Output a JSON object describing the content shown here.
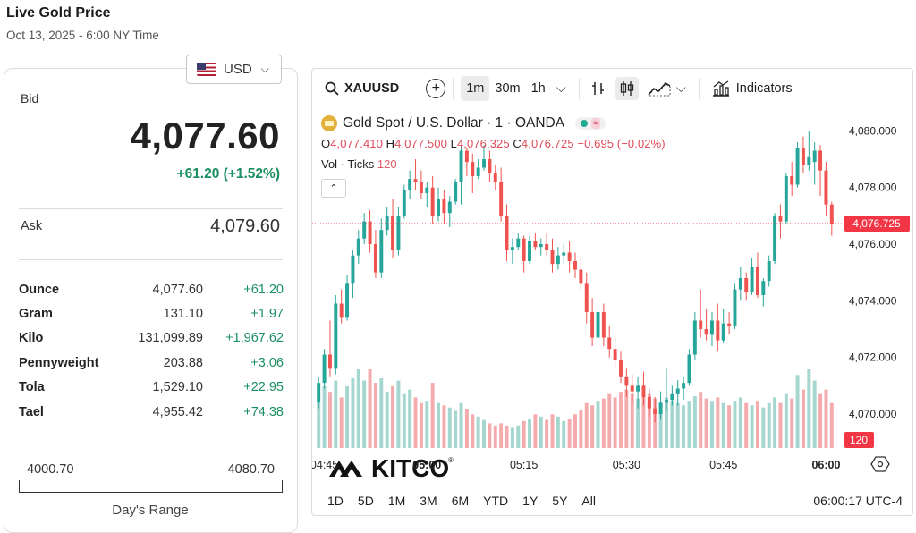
{
  "header": {
    "title": "Live Gold Price",
    "subtitle": "Oct 13, 2025 - 6:00 NY Time"
  },
  "currency": {
    "label": "USD",
    "flag": "us-flag-icon"
  },
  "quote": {
    "bid_label": "Bid",
    "bid": "4,077.60",
    "change": "+61.20 (+1.52%)",
    "ask_label": "Ask",
    "ask": "4,079.60"
  },
  "units": [
    {
      "unit": "Ounce",
      "price": "4,077.60",
      "change": "+61.20"
    },
    {
      "unit": "Gram",
      "price": "131.10",
      "change": "+1.97"
    },
    {
      "unit": "Kilo",
      "price": "131,099.89",
      "change": "+1,967.62"
    },
    {
      "unit": "Pennyweight",
      "price": "203.88",
      "change": "+3.06"
    },
    {
      "unit": "Tola",
      "price": "1,529.10",
      "change": "+22.95"
    },
    {
      "unit": "Tael",
      "price": "4,955.42",
      "change": "+74.38"
    }
  ],
  "range": {
    "low": "4000.70",
    "high": "4080.70",
    "label": "Day's Range"
  },
  "toolbar": {
    "symbol": "XAUUSD",
    "intervals": [
      "1m",
      "30m",
      "1h"
    ],
    "active_interval": "1m",
    "indicators": "Indicators"
  },
  "legend": {
    "title": "Gold Spot / U.S. Dollar · 1 · OANDA",
    "o_label": "O",
    "o": "4,077.410",
    "h_label": "H",
    "h": "4,077.500",
    "l_label": "L",
    "l": "4,076.325",
    "c_label": "C",
    "c": "4,076.725",
    "chg": "−0.695 (−0.02%)",
    "vol_label": "Vol · Ticks",
    "vol": "120"
  },
  "watermark": "KITCO",
  "ranges": [
    "1D",
    "5D",
    "1M",
    "3M",
    "6M",
    "YTD",
    "1Y",
    "5Y",
    "All"
  ],
  "clock": "06:00:17 UTC-4",
  "colors": {
    "up": "#26a69a",
    "down": "#ef5350",
    "vol_up": "#a5d6cf",
    "vol_down": "#f4abae",
    "last_price": "#f23645",
    "change_green": "#1a8f62"
  },
  "chart_data": {
    "type": "candlestick",
    "title": "Gold Spot / U.S. Dollar · 1 · OANDA",
    "y_ticks": [
      "4,080.000",
      "4,078.000",
      "4,076.000",
      "4,074.000",
      "4,072.000",
      "4,070.000"
    ],
    "x_ticks": [
      {
        "label": "04:45",
        "bold": false
      },
      {
        "label": "05:00",
        "bold": true
      },
      {
        "label": "05:15",
        "bold": false
      },
      {
        "label": "05:30",
        "bold": false
      },
      {
        "label": "05:45",
        "bold": false
      },
      {
        "label": "06:00",
        "bold": true
      }
    ],
    "ylim": [
      4068.8,
      4080.8
    ],
    "last_price": "4,076.725",
    "last_volume": "120",
    "grid": false,
    "candles": [
      [
        4070.4,
        4071.3,
        4070.2,
        4071.1,
        40
      ],
      [
        4071.1,
        4072.3,
        4070.9,
        4072.1,
        55
      ],
      [
        4072.1,
        4073.3,
        4071.3,
        4071.6,
        50
      ],
      [
        4071.6,
        4074.2,
        4071.4,
        4073.9,
        60
      ],
      [
        4073.9,
        4074.4,
        4073.2,
        4073.4,
        45
      ],
      [
        4073.4,
        4074.9,
        4073.3,
        4074.6,
        55
      ],
      [
        4074.6,
        4075.8,
        4074.1,
        4075.6,
        62
      ],
      [
        4075.6,
        4076.5,
        4075.3,
        4076.2,
        70
      ],
      [
        4076.2,
        4077.1,
        4076.0,
        4076.8,
        60
      ],
      [
        4076.8,
        4077.2,
        4075.7,
        4076.0,
        70
      ],
      [
        4076.0,
        4076.5,
        4074.8,
        4075.0,
        58
      ],
      [
        4075.0,
        4076.9,
        4074.8,
        4076.5,
        62
      ],
      [
        4076.5,
        4077.3,
        4076.3,
        4077.0,
        50
      ],
      [
        4077.0,
        4077.6,
        4075.5,
        4075.8,
        55
      ],
      [
        4075.8,
        4077.3,
        4075.6,
        4077.0,
        60
      ],
      [
        4077.0,
        4078.1,
        4076.9,
        4077.9,
        48
      ],
      [
        4077.9,
        4078.6,
        4077.6,
        4078.3,
        52
      ],
      [
        4078.3,
        4079.0,
        4077.9,
        4078.2,
        45
      ],
      [
        4078.2,
        4078.6,
        4077.6,
        4077.8,
        40
      ],
      [
        4077.8,
        4078.2,
        4077.3,
        4078.0,
        42
      ],
      [
        4078.0,
        4078.4,
        4076.7,
        4077.0,
        58
      ],
      [
        4077.0,
        4078.0,
        4076.8,
        4077.6,
        40
      ],
      [
        4077.6,
        4077.9,
        4076.7,
        4077.1,
        38
      ],
      [
        4077.1,
        4077.7,
        4076.6,
        4077.5,
        36
      ],
      [
        4077.5,
        4078.3,
        4077.4,
        4078.2,
        33
      ],
      [
        4078.2,
        4079.5,
        4077.4,
        4079.3,
        40
      ],
      [
        4079.3,
        4079.4,
        4078.4,
        4078.9,
        35
      ],
      [
        4078.9,
        4079.2,
        4077.8,
        4078.4,
        30
      ],
      [
        4078.4,
        4079.0,
        4078.3,
        4078.7,
        28
      ],
      [
        4078.7,
        4079.5,
        4078.6,
        4079.0,
        25
      ],
      [
        4079.0,
        4079.3,
        4078.2,
        4078.5,
        22
      ],
      [
        4078.5,
        4078.8,
        4077.9,
        4078.2,
        20
      ],
      [
        4078.2,
        4078.7,
        4076.8,
        4077.0,
        22
      ],
      [
        4077.0,
        4077.4,
        4075.4,
        4075.8,
        20
      ],
      [
        4075.8,
        4076.2,
        4075.3,
        4075.9,
        18
      ],
      [
        4075.9,
        4076.4,
        4075.8,
        4076.2,
        20
      ],
      [
        4076.2,
        4076.3,
        4075.0,
        4075.4,
        24
      ],
      [
        4075.4,
        4076.3,
        4075.3,
        4076.1,
        26
      ],
      [
        4076.1,
        4076.4,
        4075.8,
        4075.9,
        30
      ],
      [
        4075.9,
        4076.2,
        4075.6,
        4076.0,
        28
      ],
      [
        4076.0,
        4076.4,
        4075.6,
        4075.8,
        25
      ],
      [
        4075.8,
        4076.2,
        4075.0,
        4075.3,
        30
      ],
      [
        4075.3,
        4075.9,
        4075.1,
        4075.6,
        28
      ],
      [
        4075.6,
        4076.0,
        4075.3,
        4075.7,
        24
      ],
      [
        4075.7,
        4076.1,
        4075.0,
        4075.4,
        26
      ],
      [
        4075.4,
        4075.7,
        4074.8,
        4075.1,
        30
      ],
      [
        4075.1,
        4075.5,
        4074.3,
        4074.6,
        34
      ],
      [
        4074.6,
        4075.0,
        4073.2,
        4073.6,
        40
      ],
      [
        4073.6,
        4074.1,
        4072.4,
        4072.7,
        38
      ],
      [
        4072.7,
        4073.9,
        4072.5,
        4073.6,
        42
      ],
      [
        4073.6,
        4073.9,
        4072.4,
        4072.7,
        44
      ],
      [
        4072.7,
        4073.1,
        4072.0,
        4072.3,
        48
      ],
      [
        4072.3,
        4072.8,
        4071.6,
        4071.9,
        45
      ],
      [
        4071.9,
        4072.2,
        4071.1,
        4071.3,
        50
      ],
      [
        4071.3,
        4071.6,
        4070.6,
        4071.0,
        52
      ],
      [
        4071.0,
        4071.4,
        4070.4,
        4070.8,
        48
      ],
      [
        4070.8,
        4071.3,
        4070.2,
        4071.0,
        44
      ],
      [
        4071.0,
        4071.5,
        4070.3,
        4070.6,
        46
      ],
      [
        4070.6,
        4070.9,
        4069.9,
        4070.2,
        48
      ],
      [
        4070.2,
        4070.6,
        4069.7,
        4070.0,
        44
      ],
      [
        4070.0,
        4070.8,
        4069.8,
        4070.4,
        40
      ],
      [
        4070.4,
        4071.6,
        4070.1,
        4070.5,
        45
      ],
      [
        4070.5,
        4071.0,
        4070.3,
        4070.7,
        42
      ],
      [
        4070.7,
        4071.2,
        4070.3,
        4070.9,
        40
      ],
      [
        4070.9,
        4071.3,
        4070.5,
        4071.1,
        38
      ],
      [
        4071.1,
        4072.3,
        4071.0,
        4072.1,
        42
      ],
      [
        4072.1,
        4073.6,
        4071.9,
        4073.3,
        46
      ],
      [
        4073.3,
        4074.4,
        4072.7,
        4073.0,
        50
      ],
      [
        4073.0,
        4073.7,
        4072.6,
        4072.8,
        44
      ],
      [
        4072.8,
        4073.6,
        4072.4,
        4073.3,
        42
      ],
      [
        4073.3,
        4073.9,
        4072.2,
        4072.6,
        45
      ],
      [
        4072.6,
        4073.7,
        4072.5,
        4073.2,
        40
      ],
      [
        4073.2,
        4073.6,
        4072.8,
        4073.1,
        38
      ],
      [
        4073.1,
        4074.6,
        4073.0,
        4074.4,
        42
      ],
      [
        4074.4,
        4075.2,
        4074.0,
        4074.8,
        45
      ],
      [
        4074.8,
        4075.0,
        4074.0,
        4074.3,
        40
      ],
      [
        4074.3,
        4075.5,
        4074.2,
        4075.2,
        38
      ],
      [
        4075.2,
        4075.7,
        4074.1,
        4074.2,
        42
      ],
      [
        4074.2,
        4074.8,
        4073.8,
        4074.7,
        36
      ],
      [
        4074.7,
        4075.6,
        4074.5,
        4075.4,
        40
      ],
      [
        4075.4,
        4077.1,
        4075.3,
        4077.0,
        45
      ],
      [
        4077.0,
        4077.4,
        4076.2,
        4076.8,
        40
      ],
      [
        4076.8,
        4078.5,
        4076.7,
        4078.4,
        48
      ],
      [
        4078.4,
        4078.9,
        4077.7,
        4078.1,
        44
      ],
      [
        4078.1,
        4079.6,
        4078.0,
        4079.4,
        65
      ],
      [
        4079.4,
        4079.8,
        4078.5,
        4078.8,
        52
      ],
      [
        4078.8,
        4080.0,
        4078.6,
        4079.1,
        70
      ],
      [
        4078.9,
        4079.6,
        4078.1,
        4079.3,
        60
      ],
      [
        4079.3,
        4079.5,
        4077.7,
        4078.6,
        48
      ],
      [
        4078.6,
        4078.9,
        4077.0,
        4077.4,
        52
      ],
      [
        4077.4,
        4077.5,
        4076.3,
        4076.7,
        40
      ]
    ]
  }
}
